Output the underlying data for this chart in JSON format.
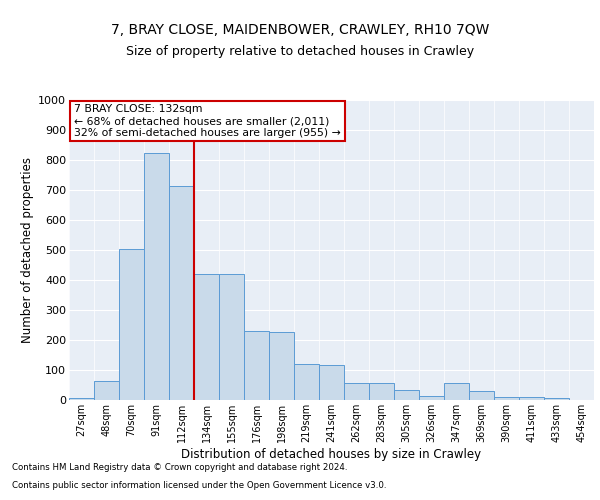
{
  "title1": "7, BRAY CLOSE, MAIDENBOWER, CRAWLEY, RH10 7QW",
  "title2": "Size of property relative to detached houses in Crawley",
  "xlabel": "Distribution of detached houses by size in Crawley",
  "ylabel": "Number of detached properties",
  "categories": [
    "27sqm",
    "48sqm",
    "70sqm",
    "91sqm",
    "112sqm",
    "134sqm",
    "155sqm",
    "176sqm",
    "198sqm",
    "219sqm",
    "241sqm",
    "262sqm",
    "283sqm",
    "305sqm",
    "326sqm",
    "347sqm",
    "369sqm",
    "390sqm",
    "411sqm",
    "433sqm",
    "454sqm"
  ],
  "values": [
    8,
    62,
    505,
    825,
    715,
    420,
    420,
    230,
    228,
    120,
    118,
    58,
    56,
    35,
    15,
    57,
    30,
    10,
    10,
    8,
    0
  ],
  "bar_color": "#c9daea",
  "bar_edge_color": "#5b9bd5",
  "ref_line_x": 4.5,
  "ref_line_color": "#cc0000",
  "annotation_text": "7 BRAY CLOSE: 132sqm\n← 68% of detached houses are smaller (2,011)\n32% of semi-detached houses are larger (955) →",
  "annotation_box_color": "white",
  "annotation_box_edge": "#cc0000",
  "bg_color": "#e8eef6",
  "grid_color": "#ffffff",
  "grid_blue": "#b8cce4",
  "footer1": "Contains HM Land Registry data © Crown copyright and database right 2024.",
  "footer2": "Contains public sector information licensed under the Open Government Licence v3.0.",
  "ylim": [
    0,
    1000
  ],
  "yticks": [
    0,
    100,
    200,
    300,
    400,
    500,
    600,
    700,
    800,
    900,
    1000
  ]
}
